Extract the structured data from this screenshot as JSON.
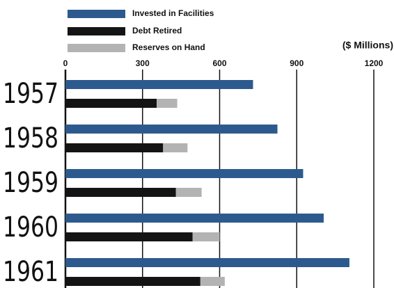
{
  "chart_data": {
    "type": "bar",
    "orientation": "horizontal",
    "stacked_series": [
      "Debt Retired",
      "Reserves on Hand"
    ],
    "axis_label": "($ Millions)",
    "categories": [
      "1957",
      "1958",
      "1959",
      "1960",
      "1961"
    ],
    "series": [
      {
        "name": "Invested in Facilities",
        "color": "#2d5a8e",
        "values": [
          730,
          825,
          925,
          1005,
          1105
        ]
      },
      {
        "name": "Debt Retired",
        "color": "#141414",
        "values": [
          355,
          380,
          430,
          495,
          525
        ]
      },
      {
        "name": "Reserves on Hand",
        "color": "#b3b3b3",
        "values": [
          80,
          95,
          100,
          105,
          95
        ]
      }
    ],
    "xlim": [
      0,
      1200
    ],
    "xticks": [
      0,
      300,
      600,
      900,
      1200
    ],
    "grid": true
  }
}
